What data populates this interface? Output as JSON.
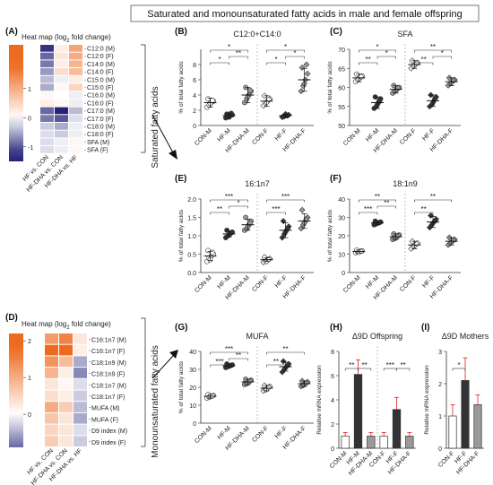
{
  "title": "Saturated and monounsaturated fatty acids in male and female offspring",
  "panels": {
    "A": "(A)",
    "B": "(B)",
    "C": "(C)",
    "D": "(D)",
    "E": "(E)",
    "F": "(F)",
    "G": "(G)",
    "H": "(H)",
    "I": "(I)"
  },
  "side_labels": {
    "saturated": "Saturated fatty acids",
    "monounsaturated": "Monounsaturated fatty acids"
  },
  "colors": {
    "high": "#ee6a1f",
    "low": "#23237a",
    "mid": "#ffffff",
    "gray_fill": "#9a9a9a",
    "dark_fill": "#333333",
    "error_red": "#e02020"
  },
  "chart_data": [
    {
      "id": "A",
      "type": "heatmap",
      "title": "Heat map (log",
      "title_sub": "2",
      "title_end": " fold change)",
      "columns": [
        "HF vs. CON",
        "HF-DHA vs. CON",
        "HF-DHA vs. HF"
      ],
      "rows": [
        "C12:0 (M)",
        "C12:0 (F)",
        "C14:0 (M)",
        "C14:0 (F)",
        "C15:0 (M)",
        "C15:0 (F)",
        "C16:0 (M)",
        "C16:0 (F)",
        "C17:0 (M)",
        "C17:0 (F)",
        "C18:0 (M)",
        "C18:0 (F)",
        "SFA (M)",
        "SFA (F)"
      ],
      "values": [
        [
          -1.2,
          0.2,
          1.1
        ],
        [
          -0.9,
          0.3,
          1.0
        ],
        [
          -0.8,
          0.2,
          0.9
        ],
        [
          -0.6,
          0.4,
          0.8
        ],
        [
          -0.4,
          -0.1,
          0.2
        ],
        [
          -0.5,
          0.1,
          0.5
        ],
        [
          0.1,
          0.0,
          -0.1
        ],
        [
          0.2,
          0.1,
          -0.1
        ],
        [
          -0.9,
          -1.3,
          -0.4
        ],
        [
          -0.8,
          -1.0,
          -0.2
        ],
        [
          -0.3,
          -0.5,
          -0.1
        ],
        [
          -0.2,
          -0.3,
          -0.1
        ],
        [
          -0.2,
          -0.1,
          0.1
        ],
        [
          -0.2,
          -0.1,
          0.1
        ]
      ],
      "scale_ticks": [
        "1",
        "0",
        "-1"
      ],
      "scale_range": [
        -1.5,
        2.5
      ]
    },
    {
      "id": "B",
      "type": "scatter",
      "title": "C12:0+C14:0",
      "ylabel": "% of total fatty acids",
      "ylim": [
        0,
        10
      ],
      "yticks": [
        0,
        2,
        4,
        6,
        8
      ],
      "categories": [
        "CON-M",
        "HF-M",
        "HF-DHA-M",
        "CON-F",
        "HF-F",
        "HF-DHA-F"
      ],
      "means": [
        3.0,
        1.3,
        4.0,
        3.2,
        1.3,
        6.0
      ],
      "errors": [
        0.6,
        0.3,
        1.0,
        0.7,
        0.2,
        1.5
      ],
      "points": [
        [
          2.4,
          2.7,
          3.0,
          3.2,
          3.5,
          2.9,
          3.3
        ],
        [
          1.0,
          1.2,
          1.3,
          1.4,
          1.5,
          1.1,
          1.6
        ],
        [
          3.0,
          3.5,
          4.0,
          4.5,
          5.0,
          3.8,
          4.6
        ],
        [
          2.6,
          2.9,
          3.2,
          3.5,
          3.9,
          3.0,
          3.4
        ],
        [
          1.1,
          1.2,
          1.3,
          1.4,
          1.2,
          1.5,
          1.3
        ],
        [
          4.5,
          5.2,
          6.0,
          6.8,
          7.6,
          5.5,
          8.0
        ]
      ],
      "markers": [
        "circle-open",
        "circle-dark",
        "circle-gray",
        "diamond-open",
        "diamond-dark",
        "diamond-gray"
      ],
      "sig": [
        {
          "from": 0,
          "to": 1,
          "level": 1,
          "label": "*"
        },
        {
          "from": 1,
          "to": 2,
          "level": 2,
          "label": "**"
        },
        {
          "from": 0,
          "to": 2,
          "level": 3,
          "label": "*"
        },
        {
          "from": 3,
          "to": 4,
          "level": 1,
          "label": "*"
        },
        {
          "from": 4,
          "to": 5,
          "level": 2,
          "label": "*"
        },
        {
          "from": 3,
          "to": 5,
          "level": 3,
          "label": "*"
        }
      ]
    },
    {
      "id": "C",
      "type": "scatter",
      "title": "SFA",
      "ylabel": "% of total fatty acids",
      "ylim": [
        50,
        70
      ],
      "yticks": [
        50,
        55,
        60,
        65,
        70
      ],
      "categories": [
        "CON-M",
        "HF-M",
        "HF-DHA-M",
        "CON-F",
        "HF-F",
        "HF-DHA-F"
      ],
      "means": [
        62.5,
        56.0,
        59.5,
        66.0,
        56.5,
        61.5
      ],
      "errors": [
        1.0,
        1.5,
        1.0,
        1.0,
        1.5,
        1.0
      ],
      "points": [
        [
          61.5,
          62.0,
          62.5,
          63.0,
          63.5,
          62.3,
          62.8
        ],
        [
          54.5,
          55.0,
          56.0,
          57.0,
          57.5,
          55.5,
          56.5
        ],
        [
          58.5,
          59.0,
          59.5,
          60.0,
          60.5,
          59.2,
          59.8
        ],
        [
          65.0,
          65.5,
          66.0,
          66.5,
          67.0,
          65.8,
          66.3
        ],
        [
          55.0,
          55.5,
          56.5,
          57.5,
          58.0,
          56.0,
          57.0
        ],
        [
          60.5,
          61.0,
          61.5,
          62.0,
          62.5,
          61.2,
          61.8
        ]
      ],
      "markers": [
        "circle-open",
        "circle-dark",
        "circle-gray",
        "diamond-open",
        "diamond-dark",
        "diamond-gray"
      ],
      "sig": [
        {
          "from": 0,
          "to": 1,
          "level": 1,
          "label": "**"
        },
        {
          "from": 1,
          "to": 2,
          "level": 2,
          "label": "*"
        },
        {
          "from": 0,
          "to": 2,
          "level": 3,
          "label": "*"
        },
        {
          "from": 3,
          "to": 4,
          "level": 1,
          "label": "**"
        },
        {
          "from": 4,
          "to": 5,
          "level": 2,
          "label": "*"
        },
        {
          "from": 3,
          "to": 5,
          "level": 3,
          "label": "**"
        }
      ]
    },
    {
      "id": "E",
      "type": "scatter",
      "title": "16:1n7",
      "ylabel": "% of total fatty acids",
      "ylim": [
        0,
        2.0
      ],
      "yticks": [
        0.0,
        0.5,
        1.0,
        1.5,
        2.0
      ],
      "categories": [
        "CON-M",
        "HF-M",
        "HF-DHA-M",
        "CON-F",
        "HF-F",
        "HF-DHA-F"
      ],
      "means": [
        0.45,
        1.05,
        1.3,
        0.35,
        1.15,
        1.4
      ],
      "errors": [
        0.12,
        0.08,
        0.15,
        0.05,
        0.2,
        0.2
      ],
      "points": [
        [
          0.3,
          0.4,
          0.45,
          0.5,
          0.6,
          0.35,
          0.55
        ],
        [
          0.95,
          1.0,
          1.05,
          1.1,
          1.15,
          1.02,
          1.08
        ],
        [
          1.15,
          1.2,
          1.3,
          1.4,
          1.5,
          1.25,
          1.35
        ],
        [
          0.28,
          0.32,
          0.35,
          0.38,
          0.42,
          0.3,
          0.36
        ],
        [
          0.95,
          1.05,
          1.15,
          1.25,
          1.4,
          1.1,
          1.2
        ],
        [
          1.2,
          1.3,
          1.4,
          1.5,
          1.7,
          1.35,
          1.45
        ]
      ],
      "markers": [
        "circle-open",
        "circle-dark",
        "circle-gray",
        "diamond-open",
        "diamond-dark",
        "diamond-gray"
      ],
      "sig": [
        {
          "from": 0,
          "to": 1,
          "level": 1,
          "label": "**"
        },
        {
          "from": 1,
          "to": 2,
          "level": 2,
          "label": "*"
        },
        {
          "from": 0,
          "to": 2,
          "level": 3,
          "label": "***"
        },
        {
          "from": 3,
          "to": 4,
          "level": 1,
          "label": "***"
        },
        {
          "from": 3,
          "to": 5,
          "level": 3,
          "label": "***"
        }
      ]
    },
    {
      "id": "F",
      "type": "scatter",
      "title": "18:1n9",
      "ylabel": "% of total fatty acids",
      "ylim": [
        0,
        40
      ],
      "yticks": [
        0,
        10,
        20,
        30,
        40
      ],
      "categories": [
        "CON-M",
        "HF-M",
        "HF-DHA-M",
        "CON-F",
        "HF-F",
        "HF-DHA-F"
      ],
      "means": [
        11.5,
        27.0,
        19.5,
        15.0,
        27.5,
        17.0
      ],
      "errors": [
        0.8,
        1.0,
        1.5,
        2.0,
        3.0,
        2.0
      ],
      "points": [
        [
          10.8,
          11.2,
          11.5,
          11.8,
          12.2,
          11.0,
          11.6
        ],
        [
          26.0,
          26.5,
          27.0,
          27.5,
          28.0,
          26.8,
          27.2
        ],
        [
          18.0,
          18.5,
          19.5,
          20.5,
          21.0,
          19.0,
          20.0
        ],
        [
          13.0,
          14.0,
          15.0,
          16.0,
          17.0,
          14.5,
          15.5
        ],
        [
          24.5,
          26.0,
          27.5,
          29.0,
          31.0,
          27.0,
          28.0
        ],
        [
          15.0,
          16.0,
          17.0,
          18.0,
          19.0,
          16.5,
          17.5
        ]
      ],
      "markers": [
        "circle-open",
        "circle-dark",
        "circle-gray",
        "diamond-open",
        "diamond-dark",
        "diamond-gray"
      ],
      "sig": [
        {
          "from": 0,
          "to": 1,
          "level": 1,
          "label": "***"
        },
        {
          "from": 1,
          "to": 2,
          "level": 2,
          "label": "**"
        },
        {
          "from": 0,
          "to": 2,
          "level": 3,
          "label": "**"
        },
        {
          "from": 3,
          "to": 4,
          "level": 1,
          "label": "**"
        },
        {
          "from": 3,
          "to": 5,
          "level": 3,
          "label": "**"
        }
      ]
    },
    {
      "id": "D",
      "type": "heatmap",
      "title": "Heat map (log",
      "title_sub": "2",
      "title_end": " fold change)",
      "columns": [
        "HF vs. CON",
        "HF-DHA vs. CON",
        "HF-DHA vs. HF"
      ],
      "rows": [
        "C16:1n7 (M)",
        "C16:1n7 (F)",
        "C18:1n9 (M)",
        "C18:1n9 (F)",
        "C18:1n7 (M)",
        "C18:1n7 (F)",
        "MUFA (M)",
        "MUFA (F)",
        "D9 index (M)",
        "D9 index (F)"
      ],
      "values": [
        [
          1.2,
          1.5,
          0.3
        ],
        [
          1.8,
          2.0,
          0.2
        ],
        [
          1.3,
          0.8,
          -0.5
        ],
        [
          0.9,
          0.2,
          -0.7
        ],
        [
          0.3,
          0.1,
          -0.2
        ],
        [
          0.4,
          0.2,
          -0.3
        ],
        [
          1.0,
          0.6,
          -0.4
        ],
        [
          0.7,
          0.3,
          -0.5
        ],
        [
          0.5,
          0.3,
          -0.2
        ],
        [
          0.6,
          0.3,
          -0.3
        ]
      ],
      "scale_ticks": [
        "2",
        "1",
        "0"
      ],
      "scale_range": [
        -0.9,
        2.2
      ]
    },
    {
      "id": "G",
      "type": "scatter",
      "title": "MUFA",
      "ylabel": "% of total fatty acids",
      "ylim": [
        0,
        40
      ],
      "yticks": [
        0,
        10,
        20,
        30,
        40
      ],
      "categories": [
        "CON-M",
        "HF-M",
        "HF-DHA-M",
        "CON-F",
        "HF-F",
        "HF-DHA-F"
      ],
      "means": [
        15.0,
        32.0,
        23.0,
        19.5,
        31.5,
        22.0
      ],
      "errors": [
        1.0,
        1.0,
        1.5,
        1.5,
        2.5,
        1.5
      ],
      "points": [
        [
          14.0,
          14.5,
          15.0,
          15.5,
          16.0,
          14.8,
          15.2
        ],
        [
          31.0,
          31.5,
          32.0,
          32.5,
          33.0,
          31.8,
          32.2
        ],
        [
          21.5,
          22.0,
          23.0,
          24.0,
          24.5,
          22.5,
          23.5
        ],
        [
          18.0,
          18.5,
          19.5,
          20.5,
          21.0,
          19.0,
          20.0
        ],
        [
          28.5,
          30.0,
          31.5,
          33.0,
          34.5,
          31.0,
          32.0
        ],
        [
          20.5,
          21.0,
          22.0,
          23.0,
          23.5,
          21.5,
          22.5
        ]
      ],
      "markers": [
        "circle-open",
        "circle-dark",
        "circle-gray",
        "diamond-open",
        "diamond-dark",
        "diamond-gray"
      ],
      "sig": [
        {
          "from": 0,
          "to": 1,
          "level": 1,
          "label": "***"
        },
        {
          "from": 1,
          "to": 2,
          "level": 2,
          "label": "**"
        },
        {
          "from": 0,
          "to": 2,
          "level": 3,
          "label": "***"
        },
        {
          "from": 3,
          "to": 4,
          "level": 1,
          "label": "**"
        },
        {
          "from": 3,
          "to": 5,
          "level": 3,
          "label": "**"
        }
      ]
    },
    {
      "id": "H",
      "type": "bar",
      "title": "Δ9D Offspring",
      "ylabel": "Relative mRNA expression",
      "ylim": [
        0,
        8
      ],
      "yticks": [
        0,
        2,
        4,
        6,
        8
      ],
      "categories": [
        "CON-M",
        "HF-M",
        "HF-DHA-M",
        "CON-F",
        "HF-F",
        "HF-DHA-F"
      ],
      "values": [
        1.0,
        6.1,
        1.0,
        1.0,
        3.2,
        1.0
      ],
      "errors": [
        0.3,
        1.2,
        0.3,
        0.3,
        1.0,
        0.3
      ],
      "fills": [
        "white",
        "dark",
        "gray",
        "white",
        "dark",
        "gray"
      ],
      "sig": [
        {
          "from": 0,
          "to": 1,
          "level": 1,
          "label": "**"
        },
        {
          "from": 1,
          "to": 2,
          "level": 1,
          "label": "**"
        },
        {
          "from": 3,
          "to": 4,
          "level": 1,
          "label": "***"
        },
        {
          "from": 4,
          "to": 5,
          "level": 1,
          "label": "**"
        }
      ]
    },
    {
      "id": "I",
      "type": "bar",
      "title": "Δ9D Mothers",
      "ylabel": "Relative mRNA expression",
      "ylim": [
        0,
        3
      ],
      "yticks": [
        0,
        1,
        2,
        3
      ],
      "categories": [
        "CON-F",
        "HF-F",
        "HF-DHA-F"
      ],
      "values": [
        1.0,
        2.1,
        1.35
      ],
      "errors": [
        0.35,
        0.7,
        0.3
      ],
      "fills": [
        "white",
        "dark",
        "gray"
      ],
      "sig": [
        {
          "from": 0,
          "to": 1,
          "level": 1,
          "label": "*"
        }
      ]
    }
  ]
}
